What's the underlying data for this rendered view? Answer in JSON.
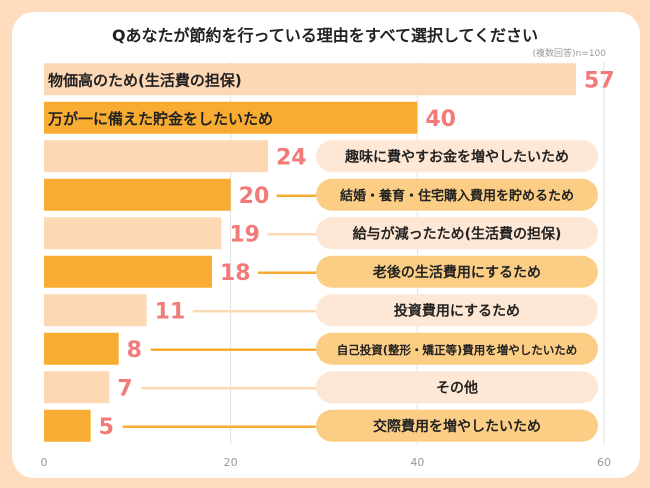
{
  "chart_data": {
    "type": "bar",
    "orientation": "horizontal",
    "title": "Qあなたが節約を行っている理由をすべて選択してください",
    "note": "(複数回答)n=100",
    "categories": [
      "物価高のため(生活費の担保)",
      "万が一に備えた貯金をしたいため",
      "趣味に費やすお金を増やしたいため",
      "結婚・養育・住宅購入費用を貯めるため",
      "給与が減ったため(生活費の担保)",
      "老後の生活費用にするため",
      "投資費用にするため",
      "自己投資(整形・矯正等)費用を増やしたいため",
      "その他",
      "交際費用を増やしたいため"
    ],
    "values": [
      57,
      40,
      24,
      20,
      19,
      18,
      11,
      8,
      7,
      5
    ],
    "xlim": [
      0,
      60
    ],
    "xticks": [
      "0",
      "20",
      "40",
      "60"
    ],
    "grid": true,
    "colors": {
      "bar_light": "#fdd8b4",
      "bar_dark": "#f9ac32",
      "pill_light": "#fee7d4",
      "pill_dark": "#fcce85",
      "value": "#f27b7a",
      "background": "#fedcbd"
    }
  }
}
